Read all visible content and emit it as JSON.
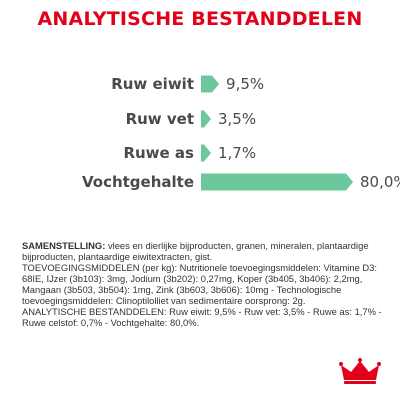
{
  "title": "ANALYTISCHE BESTANDDELEN",
  "colors": {
    "title": "#e2001a",
    "bar": "#6cc79a",
    "text": "#4a4a4a",
    "logo": "#e2001a"
  },
  "chart_data": {
    "type": "bar",
    "orientation": "horizontal",
    "categories": [
      "Ruw eiwit",
      "Ruw vet",
      "Ruwe as",
      "Vochtgehalte"
    ],
    "values": [
      9.5,
      3.5,
      1.7,
      80.0
    ],
    "value_labels": [
      "9,5%",
      "3,5%",
      "1,7%",
      "80,0%"
    ],
    "xlim": [
      0,
      80
    ],
    "grid": false,
    "legend": "none"
  },
  "composition": {
    "heading": "SAMENSTELLING:",
    "text": "vlees en dierlijke bijproducten, granen, mineralen, plantaardige bijproducten, plantaardige eiwitextracten, gist.",
    "additives": "TOEVOEGINGSMIDDELEN (per kg): Nutritionele toevoegingsmiddelen: Vitamine D3: 68IE, IJzer (3b103): 3mg, Jodium (3b202): 0,27mg, Koper (3b405, 3b406): 2,2mg, Mangaan (3b503, 3b504): 1mg, Zink (3b603, 3b606): 10mg - Technologische toevoegingsmiddelen: Clinoptilolliet van sedimentaire oorsprong: 2g.",
    "analysis": "ANALYTISCHE BESTANDDELEN: Ruw eiwit: 9,5% - Ruw vet: 3,5% - Ruwe as: 1,7% - Ruwe celstof: 0,7% - Vochtgehalte: 80,0%."
  },
  "logo_icon": "royal-crown-logo-icon"
}
